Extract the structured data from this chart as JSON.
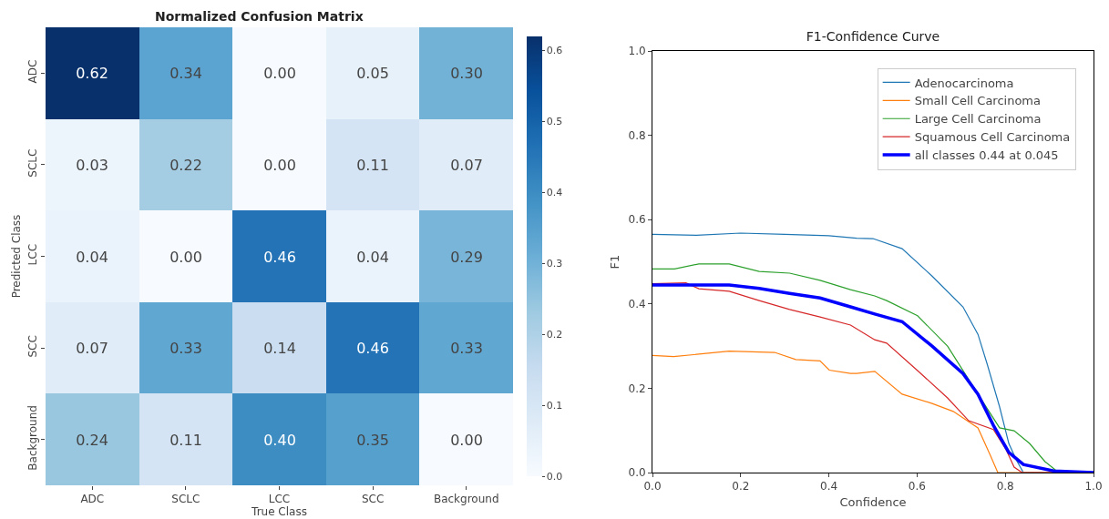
{
  "chart_data": [
    {
      "type": "heatmap",
      "title": "Normalized Confusion Matrix",
      "xlabel": "True Class",
      "ylabel": "Predicted Class",
      "categories": [
        "ADC",
        "SCLC",
        "LCC",
        "SCC",
        "Background"
      ],
      "y_categories": [
        "ADC",
        "SCLC",
        "LCC",
        "SCC",
        "Background"
      ],
      "cells": [
        [
          0.62,
          0.34,
          0.0,
          0.05,
          0.3
        ],
        [
          0.03,
          0.22,
          0.0,
          0.11,
          0.07
        ],
        [
          0.04,
          0.0,
          0.46,
          0.04,
          0.29
        ],
        [
          0.07,
          0.33,
          0.14,
          0.46,
          0.33
        ],
        [
          0.24,
          0.11,
          0.4,
          0.35,
          0.0
        ]
      ],
      "cell_labels": [
        [
          "0.62",
          "0.34",
          "0.00",
          "0.05",
          "0.30"
        ],
        [
          "0.03",
          "0.22",
          "0.00",
          "0.11",
          "0.07"
        ],
        [
          "0.04",
          "0.00",
          "0.46",
          "0.04",
          "0.29"
        ],
        [
          "0.07",
          "0.33",
          "0.14",
          "0.46",
          "0.33"
        ],
        [
          "0.24",
          "0.11",
          "0.40",
          "0.35",
          "0.00"
        ]
      ],
      "clim": [
        0,
        0.62
      ],
      "cticks": [
        {
          "value": 0,
          "label": "0.0"
        },
        0.1,
        0.2,
        0.3,
        0.4,
        0.5,
        0.6
      ]
    },
    {
      "type": "line",
      "title": "F1-Confidence Curve",
      "xlabel": "Confidence",
      "ylabel": "F1",
      "xlim": [
        0,
        1
      ],
      "ylim": [
        0,
        1
      ],
      "xticks": [
        {
          "value": 0,
          "label": "0.0"
        },
        0.2,
        0.4,
        0.6,
        0.8,
        {
          "value": 1,
          "label": "1.0"
        }
      ],
      "yticks": [
        {
          "value": 0,
          "label": "0.0"
        },
        0.2,
        0.4,
        0.6,
        0.8,
        {
          "value": 1,
          "label": "1.0"
        }
      ],
      "grid": false,
      "legend": "top right",
      "marker": "none",
      "line_style": "solid",
      "series": [
        {
          "name": "Adenocarcinoma",
          "color": "#1f77b4",
          "x": [
            0,
            0.1,
            0.2,
            0.3,
            0.4,
            0.463,
            0.5,
            0.566,
            0.634,
            0.704,
            0.738,
            0.759,
            0.787,
            0.808,
            0.825,
            0.841,
            1
          ],
          "values": [
            0.565,
            0.563,
            0.568,
            0.565,
            0.562,
            0.556,
            0.555,
            0.531,
            0.466,
            0.393,
            0.328,
            0.257,
            0.156,
            0.069,
            0.03,
            0,
            0
          ]
        },
        {
          "name": "Small Cell Carcinoma",
          "color": "#ff7f0e",
          "x": [
            0,
            0.048,
            0.174,
            0.277,
            0.325,
            0.38,
            0.401,
            0.449,
            0.463,
            0.504,
            0.566,
            0.634,
            0.682,
            0.738,
            0.766,
            0.783,
            1
          ],
          "values": [
            0.278,
            0.275,
            0.288,
            0.285,
            0.268,
            0.265,
            0.243,
            0.235,
            0.235,
            0.24,
            0.186,
            0.164,
            0.145,
            0.106,
            0.041,
            0,
            0
          ]
        },
        {
          "name": "Large Cell Carcinoma",
          "color": "#2ca02c",
          "x": [
            0,
            0.05,
            0.105,
            0.174,
            0.242,
            0.311,
            0.38,
            0.449,
            0.504,
            0.531,
            0.601,
            0.669,
            0.738,
            0.787,
            0.82,
            0.855,
            0.89,
            0.921,
            1
          ],
          "values": [
            0.483,
            0.483,
            0.495,
            0.495,
            0.477,
            0.473,
            0.456,
            0.434,
            0.419,
            0.408,
            0.372,
            0.3,
            0.186,
            0.106,
            0.099,
            0.069,
            0.026,
            0,
            0
          ]
        },
        {
          "name": "Squamous Cell Carcinoma",
          "color": "#d62728",
          "x": [
            0,
            0.076,
            0.105,
            0.174,
            0.242,
            0.311,
            0.38,
            0.449,
            0.504,
            0.531,
            0.601,
            0.669,
            0.717,
            0.773,
            0.801,
            0.82,
            0.838,
            1
          ],
          "values": [
            0.448,
            0.45,
            0.436,
            0.43,
            0.408,
            0.387,
            0.369,
            0.35,
            0.315,
            0.307,
            0.242,
            0.177,
            0.123,
            0.102,
            0.056,
            0.013,
            0,
            0
          ]
        },
        {
          "name": "all classes 0.44 at 0.045",
          "color": "#0000ff",
          "x": [
            0,
            0.1,
            0.174,
            0.242,
            0.311,
            0.38,
            0.449,
            0.504,
            0.566,
            0.634,
            0.704,
            0.738,
            0.773,
            0.808,
            0.841,
            0.91,
            1
          ],
          "values": [
            0.445,
            0.445,
            0.445,
            0.437,
            0.425,
            0.414,
            0.393,
            0.376,
            0.358,
            0.3,
            0.235,
            0.186,
            0.112,
            0.048,
            0.019,
            0.004,
            0
          ]
        }
      ]
    }
  ]
}
